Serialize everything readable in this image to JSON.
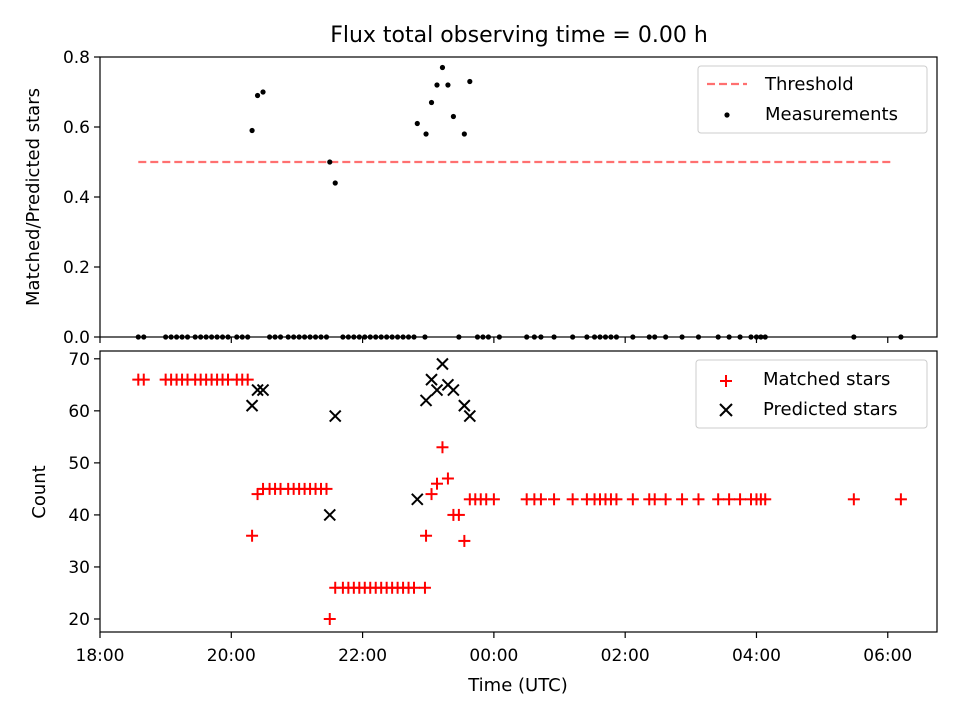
{
  "chart_data": [
    {
      "type": "scatter",
      "title": "Flux total observing time = 0.00 h",
      "xlabel": "",
      "ylabel": "Matched/Predicted stars",
      "xlim": [
        "18:00",
        "06:45"
      ],
      "ylim": [
        0,
        0.8
      ],
      "yticks": [
        "0.0",
        "0.2",
        "0.4",
        "0.6",
        "0.8"
      ],
      "legend_position": "top-right",
      "threshold": {
        "name": "Threshold",
        "value": 0.5,
        "x_start": "18:35",
        "x_end": "06:05",
        "color": "#ff7070",
        "style": "dashed"
      },
      "series": [
        {
          "name": "Measurements",
          "color": "#000000",
          "marker": "dot",
          "points": [
            [
              "18:35",
              0
            ],
            [
              "18:40",
              0
            ],
            [
              "19:00",
              0
            ],
            [
              "19:05",
              0
            ],
            [
              "19:10",
              0
            ],
            [
              "19:15",
              0
            ],
            [
              "19:20",
              0
            ],
            [
              "19:27",
              0
            ],
            [
              "19:32",
              0
            ],
            [
              "19:37",
              0
            ],
            [
              "19:42",
              0
            ],
            [
              "19:47",
              0
            ],
            [
              "19:52",
              0
            ],
            [
              "19:57",
              0
            ],
            [
              "20:05",
              0
            ],
            [
              "20:10",
              0
            ],
            [
              "20:15",
              0
            ],
            [
              "20:19",
              0.59
            ],
            [
              "20:24",
              0.69
            ],
            [
              "20:29",
              0.7
            ],
            [
              "20:35",
              0
            ],
            [
              "20:40",
              0
            ],
            [
              "20:45",
              0
            ],
            [
              "20:52",
              0
            ],
            [
              "20:57",
              0
            ],
            [
              "21:02",
              0
            ],
            [
              "21:07",
              0
            ],
            [
              "21:12",
              0
            ],
            [
              "21:17",
              0
            ],
            [
              "21:22",
              0
            ],
            [
              "21:27",
              0
            ],
            [
              "21:30",
              0.5
            ],
            [
              "21:35",
              0.44
            ],
            [
              "21:42",
              0
            ],
            [
              "21:47",
              0
            ],
            [
              "21:52",
              0
            ],
            [
              "21:57",
              0
            ],
            [
              "22:02",
              0
            ],
            [
              "22:07",
              0
            ],
            [
              "22:12",
              0
            ],
            [
              "22:17",
              0
            ],
            [
              "22:22",
              0
            ],
            [
              "22:27",
              0
            ],
            [
              "22:32",
              0
            ],
            [
              "22:37",
              0
            ],
            [
              "22:42",
              0
            ],
            [
              "22:47",
              0
            ],
            [
              "22:57",
              0
            ],
            [
              "22:50",
              0.61
            ],
            [
              "22:58",
              0.58
            ],
            [
              "23:03",
              0.67
            ],
            [
              "23:08",
              0.72
            ],
            [
              "23:13",
              0.77
            ],
            [
              "23:18",
              0.72
            ],
            [
              "23:23",
              0.63
            ],
            [
              "23:33",
              0.58
            ],
            [
              "23:38",
              0.73
            ],
            [
              "23:28",
              0
            ],
            [
              "23:45",
              0
            ],
            [
              "23:50",
              0
            ],
            [
              "23:55",
              0
            ],
            [
              "00:05",
              0
            ],
            [
              "00:30",
              0
            ],
            [
              "00:37",
              0
            ],
            [
              "00:43",
              0
            ],
            [
              "00:55",
              0
            ],
            [
              "01:12",
              0
            ],
            [
              "01:25",
              0
            ],
            [
              "01:32",
              0
            ],
            [
              "01:37",
              0
            ],
            [
              "01:42",
              0
            ],
            [
              "01:47",
              0
            ],
            [
              "01:52",
              0
            ],
            [
              "02:07",
              0
            ],
            [
              "02:22",
              0
            ],
            [
              "02:27",
              0
            ],
            [
              "02:37",
              0
            ],
            [
              "02:52",
              0
            ],
            [
              "03:07",
              0
            ],
            [
              "03:25",
              0
            ],
            [
              "03:35",
              0
            ],
            [
              "03:45",
              0
            ],
            [
              "03:55",
              0
            ],
            [
              "04:00",
              0
            ],
            [
              "04:04",
              0
            ],
            [
              "04:08",
              0
            ],
            [
              "05:29",
              0
            ],
            [
              "06:12",
              0
            ]
          ]
        }
      ]
    },
    {
      "type": "scatter",
      "title": "",
      "xlabel": "Time (UTC)",
      "ylabel": "Count",
      "xlim": [
        "18:00",
        "06:45"
      ],
      "ylim": [
        17.5,
        71.5
      ],
      "xticks": [
        "18:00",
        "20:00",
        "22:00",
        "00:00",
        "02:00",
        "04:00",
        "06:00"
      ],
      "yticks": [
        "20",
        "30",
        "40",
        "50",
        "60",
        "70"
      ],
      "legend_position": "top-right",
      "series": [
        {
          "name": "Matched stars",
          "color": "#ff0000",
          "marker": "plus",
          "points": [
            [
              "18:35",
              66
            ],
            [
              "18:40",
              66
            ],
            [
              "19:00",
              66
            ],
            [
              "19:05",
              66
            ],
            [
              "19:10",
              66
            ],
            [
              "19:15",
              66
            ],
            [
              "19:20",
              66
            ],
            [
              "19:27",
              66
            ],
            [
              "19:32",
              66
            ],
            [
              "19:37",
              66
            ],
            [
              "19:42",
              66
            ],
            [
              "19:47",
              66
            ],
            [
              "19:52",
              66
            ],
            [
              "19:57",
              66
            ],
            [
              "20:05",
              66
            ],
            [
              "20:10",
              66
            ],
            [
              "20:15",
              66
            ],
            [
              "20:19",
              36
            ],
            [
              "20:24",
              44
            ],
            [
              "20:29",
              45
            ],
            [
              "20:35",
              45
            ],
            [
              "20:40",
              45
            ],
            [
              "20:45",
              45
            ],
            [
              "20:52",
              45
            ],
            [
              "20:57",
              45
            ],
            [
              "21:02",
              45
            ],
            [
              "21:07",
              45
            ],
            [
              "21:12",
              45
            ],
            [
              "21:17",
              45
            ],
            [
              "21:22",
              45
            ],
            [
              "21:27",
              45
            ],
            [
              "21:30",
              20
            ],
            [
              "21:35",
              26
            ],
            [
              "21:42",
              26
            ],
            [
              "21:47",
              26
            ],
            [
              "21:52",
              26
            ],
            [
              "21:57",
              26
            ],
            [
              "22:02",
              26
            ],
            [
              "22:07",
              26
            ],
            [
              "22:12",
              26
            ],
            [
              "22:17",
              26
            ],
            [
              "22:22",
              26
            ],
            [
              "22:27",
              26
            ],
            [
              "22:32",
              26
            ],
            [
              "22:37",
              26
            ],
            [
              "22:42",
              26
            ],
            [
              "22:47",
              26
            ],
            [
              "22:57",
              26
            ],
            [
              "22:58",
              36
            ],
            [
              "23:03",
              44
            ],
            [
              "23:08",
              46
            ],
            [
              "23:13",
              53
            ],
            [
              "23:18",
              47
            ],
            [
              "23:23",
              40
            ],
            [
              "23:28",
              40
            ],
            [
              "23:33",
              35
            ],
            [
              "23:38",
              43
            ],
            [
              "23:43",
              43
            ],
            [
              "23:48",
              43
            ],
            [
              "23:53",
              43
            ],
            [
              "00:00",
              43
            ],
            [
              "00:30",
              43
            ],
            [
              "00:37",
              43
            ],
            [
              "00:43",
              43
            ],
            [
              "00:55",
              43
            ],
            [
              "01:12",
              43
            ],
            [
              "01:25",
              43
            ],
            [
              "01:32",
              43
            ],
            [
              "01:37",
              43
            ],
            [
              "01:42",
              43
            ],
            [
              "01:47",
              43
            ],
            [
              "01:52",
              43
            ],
            [
              "02:07",
              43
            ],
            [
              "02:22",
              43
            ],
            [
              "02:27",
              43
            ],
            [
              "02:37",
              43
            ],
            [
              "02:52",
              43
            ],
            [
              "03:07",
              43
            ],
            [
              "03:25",
              43
            ],
            [
              "03:35",
              43
            ],
            [
              "03:45",
              43
            ],
            [
              "03:55",
              43
            ],
            [
              "04:00",
              43
            ],
            [
              "04:04",
              43
            ],
            [
              "04:08",
              43
            ],
            [
              "05:29",
              43
            ],
            [
              "06:12",
              43
            ]
          ]
        },
        {
          "name": "Predicted stars",
          "color": "#000000",
          "marker": "x",
          "points": [
            [
              "20:19",
              61
            ],
            [
              "20:24",
              64
            ],
            [
              "20:29",
              64
            ],
            [
              "21:30",
              40
            ],
            [
              "21:35",
              59
            ],
            [
              "22:50",
              43
            ],
            [
              "22:58",
              62
            ],
            [
              "23:03",
              66
            ],
            [
              "23:08",
              64
            ],
            [
              "23:13",
              69
            ],
            [
              "23:18",
              65
            ],
            [
              "23:23",
              64
            ],
            [
              "23:33",
              61
            ],
            [
              "23:38",
              59
            ]
          ]
        }
      ]
    }
  ]
}
